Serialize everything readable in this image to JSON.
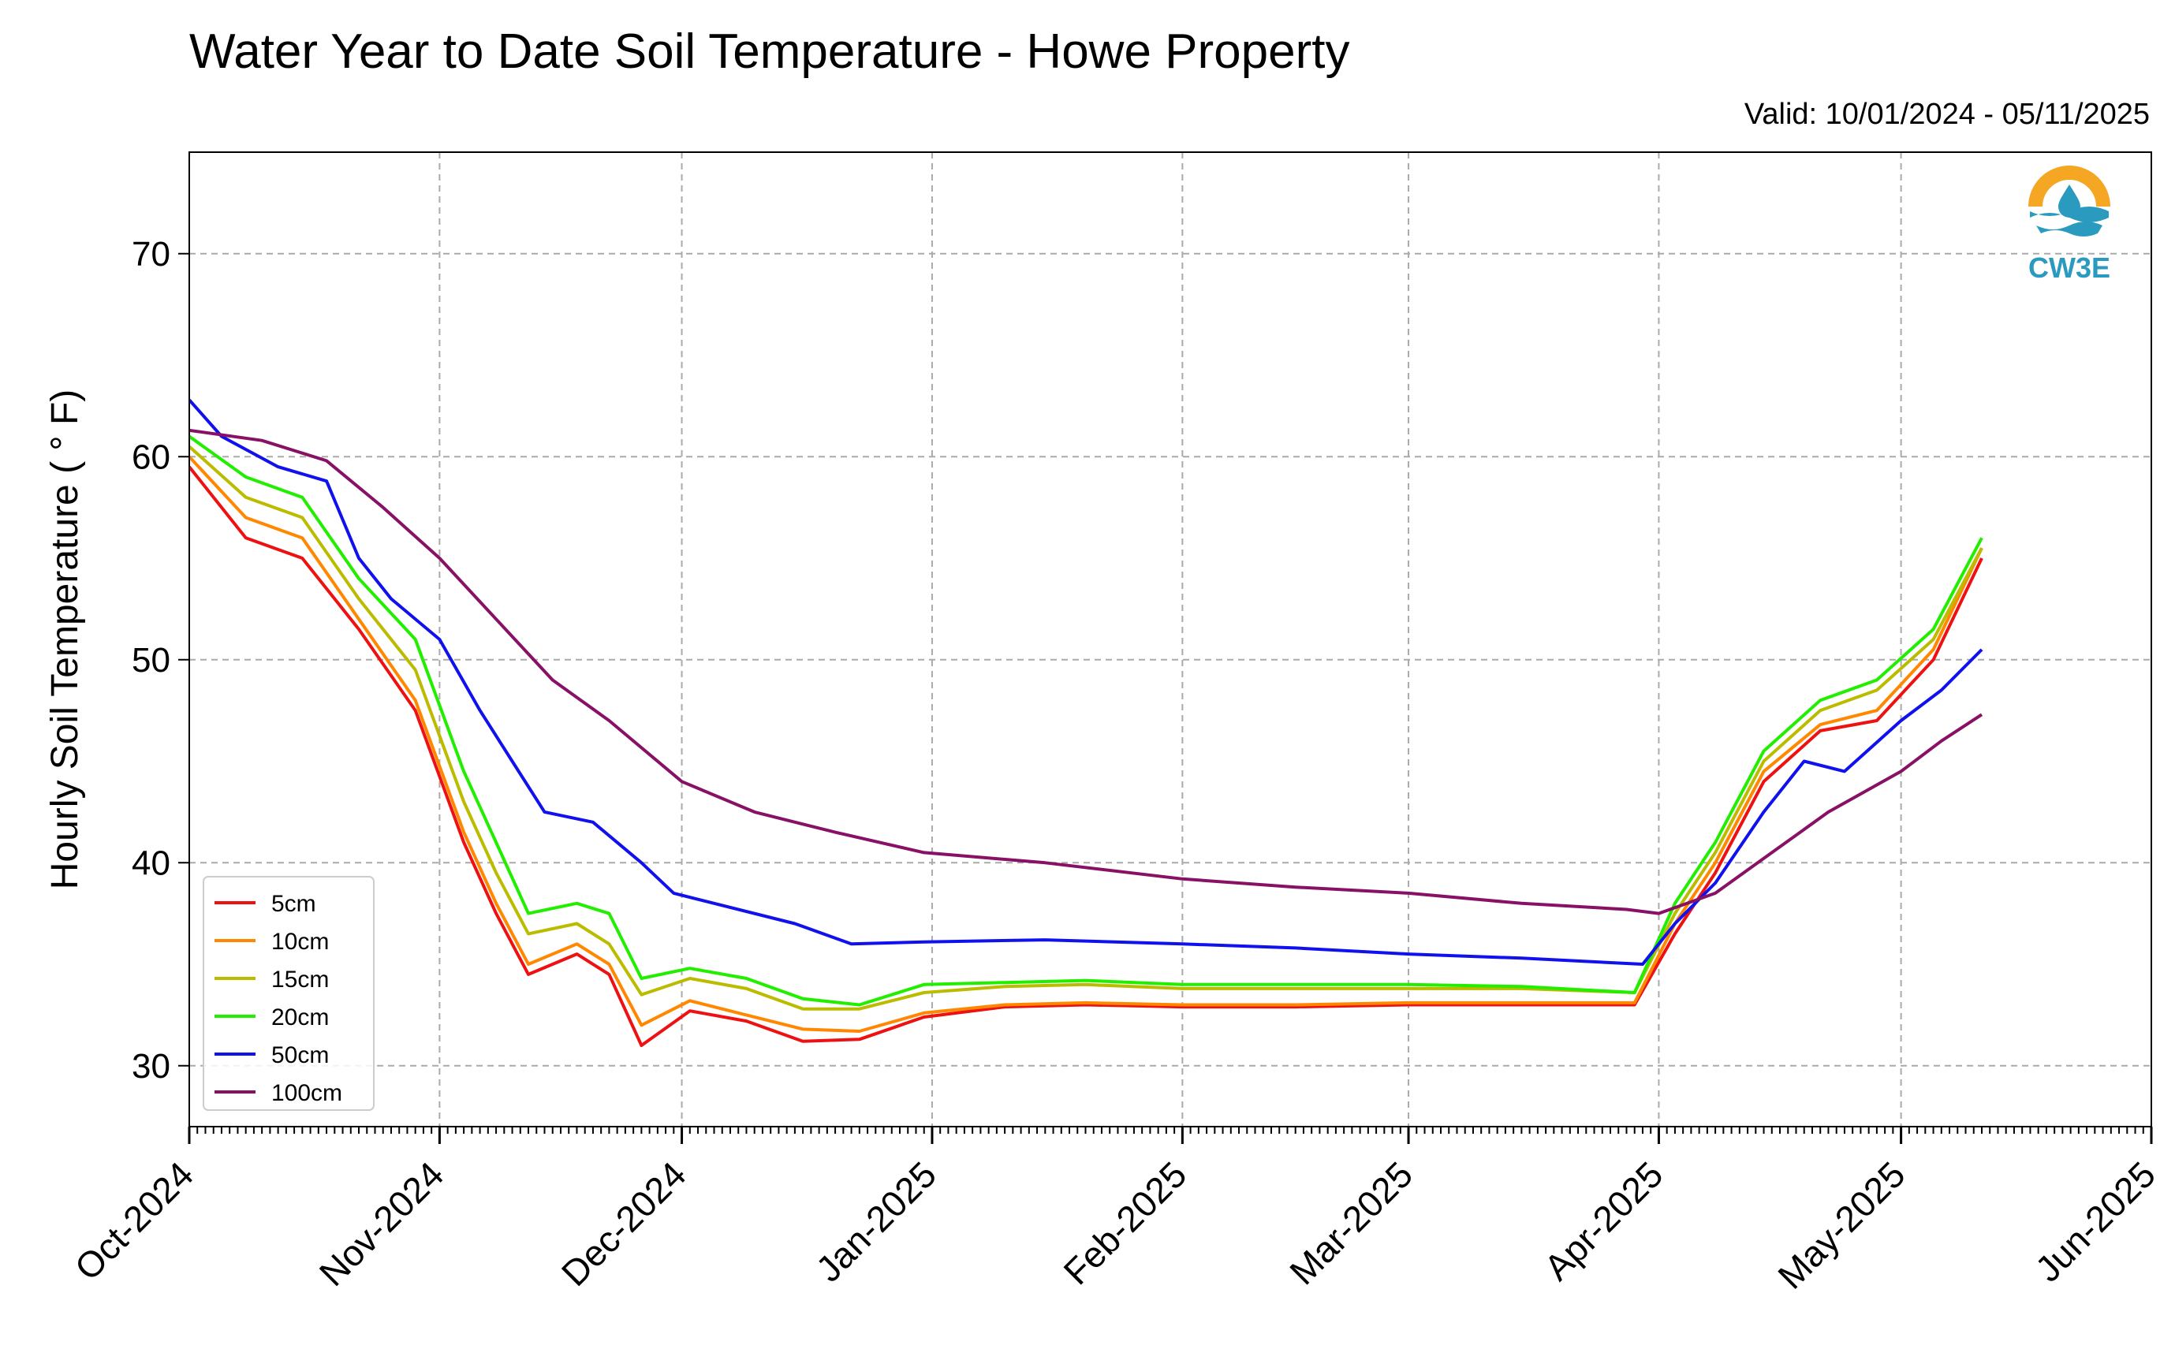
{
  "chart_data": {
    "type": "line",
    "title": "Water Year to Date Soil Temperature - Howe Property",
    "subtitle": "Valid: 10/01/2024 - 05/11/2025",
    "xlabel": "",
    "ylabel": "Hourly Soil Temperature ( ° F)",
    "x_type": "date",
    "xlim": [
      "2024-10-01",
      "2025-06-01"
    ],
    "ylim": [
      27,
      75
    ],
    "x_ticks": [
      "2024-10-01",
      "2024-11-01",
      "2024-12-01",
      "2025-01-01",
      "2025-02-01",
      "2025-03-01",
      "2025-04-01",
      "2025-05-01",
      "2025-06-01"
    ],
    "x_tick_labels": [
      "Oct-2024",
      "Nov-2024",
      "Dec-2024",
      "Jan-2025",
      "Feb-2025",
      "Mar-2025",
      "Apr-2025",
      "May-2025",
      "Jun-2025"
    ],
    "y_ticks": [
      30,
      40,
      50,
      60,
      70
    ],
    "y_tick_labels": [
      "30",
      "40",
      "50",
      "60",
      "70"
    ],
    "grid": true,
    "legend_position": "lower-left",
    "logo_text": "CW3E",
    "series": [
      {
        "name": "5cm",
        "color": "#ee1111",
        "x": [
          "2024-10-01",
          "2024-10-08",
          "2024-10-15",
          "2024-10-22",
          "2024-10-29",
          "2024-11-04",
          "2024-11-08",
          "2024-11-12",
          "2024-11-18",
          "2024-11-22",
          "2024-11-26",
          "2024-12-02",
          "2024-12-09",
          "2024-12-16",
          "2024-12-23",
          "2024-12-31",
          "2025-01-10",
          "2025-01-20",
          "2025-02-01",
          "2025-02-15",
          "2025-03-01",
          "2025-03-15",
          "2025-03-29",
          "2025-04-03",
          "2025-04-08",
          "2025-04-14",
          "2025-04-21",
          "2025-04-28",
          "2025-05-05",
          "2025-05-11"
        ],
        "y": [
          59.5,
          56.0,
          55.0,
          51.5,
          47.5,
          41.0,
          37.5,
          34.5,
          35.5,
          34.5,
          31.0,
          32.7,
          32.2,
          31.2,
          31.3,
          32.4,
          32.9,
          33.0,
          32.9,
          32.9,
          33.0,
          33.0,
          33.0,
          36.5,
          39.5,
          44.0,
          46.5,
          47.0,
          50.0,
          55.0
        ]
      },
      {
        "name": "10cm",
        "color": "#ff8800",
        "x": [
          "2024-10-01",
          "2024-10-08",
          "2024-10-15",
          "2024-10-22",
          "2024-10-29",
          "2024-11-04",
          "2024-11-08",
          "2024-11-12",
          "2024-11-18",
          "2024-11-22",
          "2024-11-26",
          "2024-12-02",
          "2024-12-09",
          "2024-12-16",
          "2024-12-23",
          "2024-12-31",
          "2025-01-10",
          "2025-01-20",
          "2025-02-01",
          "2025-02-15",
          "2025-03-01",
          "2025-03-15",
          "2025-03-29",
          "2025-04-03",
          "2025-04-08",
          "2025-04-14",
          "2025-04-21",
          "2025-04-28",
          "2025-05-05",
          "2025-05-11"
        ],
        "y": [
          60.0,
          57.0,
          56.0,
          52.0,
          48.0,
          41.5,
          38.0,
          35.0,
          36.0,
          35.0,
          32.0,
          33.2,
          32.5,
          31.8,
          31.7,
          32.6,
          33.0,
          33.1,
          33.0,
          33.0,
          33.1,
          33.1,
          33.1,
          37.0,
          40.0,
          44.5,
          46.8,
          47.5,
          50.5,
          55.5
        ]
      },
      {
        "name": "15cm",
        "color": "#bbbb00",
        "x": [
          "2024-10-01",
          "2024-10-08",
          "2024-10-15",
          "2024-10-22",
          "2024-10-29",
          "2024-11-04",
          "2024-11-08",
          "2024-11-12",
          "2024-11-18",
          "2024-11-22",
          "2024-11-26",
          "2024-12-02",
          "2024-12-09",
          "2024-12-16",
          "2024-12-23",
          "2024-12-31",
          "2025-01-10",
          "2025-01-20",
          "2025-02-01",
          "2025-02-15",
          "2025-03-01",
          "2025-03-15",
          "2025-03-29",
          "2025-04-03",
          "2025-04-08",
          "2025-04-14",
          "2025-04-21",
          "2025-04-28",
          "2025-05-05",
          "2025-05-11"
        ],
        "y": [
          60.5,
          58.0,
          57.0,
          53.0,
          49.5,
          43.0,
          39.5,
          36.5,
          37.0,
          36.0,
          33.5,
          34.3,
          33.8,
          32.8,
          32.8,
          33.6,
          33.9,
          34.0,
          33.8,
          33.8,
          33.8,
          33.8,
          33.6,
          37.5,
          40.5,
          45.0,
          47.5,
          48.5,
          51.0,
          55.5
        ]
      },
      {
        "name": "20cm",
        "color": "#22ee00",
        "x": [
          "2024-10-01",
          "2024-10-08",
          "2024-10-15",
          "2024-10-22",
          "2024-10-29",
          "2024-11-04",
          "2024-11-08",
          "2024-11-12",
          "2024-11-18",
          "2024-11-22",
          "2024-11-26",
          "2024-12-02",
          "2024-12-09",
          "2024-12-16",
          "2024-12-23",
          "2024-12-31",
          "2025-01-10",
          "2025-01-20",
          "2025-02-01",
          "2025-02-15",
          "2025-03-01",
          "2025-03-15",
          "2025-03-29",
          "2025-04-03",
          "2025-04-08",
          "2025-04-14",
          "2025-04-21",
          "2025-04-28",
          "2025-05-05",
          "2025-05-11"
        ],
        "y": [
          61.0,
          59.0,
          58.0,
          54.0,
          51.0,
          44.5,
          41.0,
          37.5,
          38.0,
          37.5,
          34.3,
          34.8,
          34.3,
          33.3,
          33.0,
          34.0,
          34.1,
          34.2,
          34.0,
          34.0,
          34.0,
          33.9,
          33.6,
          38.0,
          41.0,
          45.5,
          48.0,
          49.0,
          51.5,
          56.0
        ]
      },
      {
        "name": "50cm",
        "color": "#1111ee",
        "x": [
          "2024-10-01",
          "2024-10-05",
          "2024-10-12",
          "2024-10-18",
          "2024-10-22",
          "2024-10-26",
          "2024-11-01",
          "2024-11-06",
          "2024-11-10",
          "2024-11-14",
          "2024-11-20",
          "2024-11-26",
          "2024-11-30",
          "2024-12-05",
          "2024-12-15",
          "2024-12-22",
          "2024-12-31",
          "2025-01-15",
          "2025-02-01",
          "2025-02-15",
          "2025-03-01",
          "2025-03-15",
          "2025-03-30",
          "2025-04-03",
          "2025-04-08",
          "2025-04-14",
          "2025-04-19",
          "2025-04-24",
          "2025-05-01",
          "2025-05-06",
          "2025-05-11"
        ],
        "y": [
          62.8,
          61.0,
          59.5,
          58.8,
          55.0,
          53.0,
          51.0,
          47.5,
          45.0,
          42.5,
          42.0,
          40.0,
          38.5,
          38.0,
          37.0,
          36.0,
          36.1,
          36.2,
          36.0,
          35.8,
          35.5,
          35.3,
          35.0,
          37.0,
          39.0,
          42.5,
          45.0,
          44.5,
          47.0,
          48.5,
          50.5
        ]
      },
      {
        "name": "100cm",
        "color": "#881166",
        "x": [
          "2024-10-01",
          "2024-10-10",
          "2024-10-18",
          "2024-10-25",
          "2024-11-01",
          "2024-11-08",
          "2024-11-15",
          "2024-11-22",
          "2024-12-01",
          "2024-12-10",
          "2024-12-20",
          "2024-12-31",
          "2025-01-15",
          "2025-02-01",
          "2025-02-15",
          "2025-03-01",
          "2025-03-15",
          "2025-03-28",
          "2025-04-01",
          "2025-04-08",
          "2025-04-15",
          "2025-04-22",
          "2025-05-01",
          "2025-05-06",
          "2025-05-11"
        ],
        "y": [
          61.3,
          60.8,
          59.8,
          57.5,
          55.0,
          52.0,
          49.0,
          47.0,
          44.0,
          42.5,
          41.5,
          40.5,
          40.0,
          39.2,
          38.8,
          38.5,
          38.0,
          37.7,
          37.5,
          38.5,
          40.5,
          42.5,
          44.5,
          46.0,
          47.3
        ]
      }
    ]
  }
}
